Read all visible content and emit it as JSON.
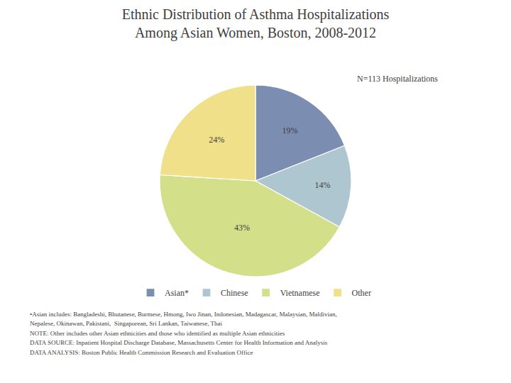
{
  "chart_data": {
    "type": "pie",
    "title": "Ethnic Distribution of Asthma Hospitalizations\nAmong Asian Women, Boston, 2008-2012",
    "subtitle": "N=113 Hospitalizations",
    "categories": [
      "Asian*",
      "Chinese",
      "Vietnamese",
      "Other"
    ],
    "values": [
      19,
      14,
      43,
      24
    ],
    "value_labels": [
      "19%",
      "14%",
      "43%",
      "24%"
    ],
    "colors": [
      "#7b8db0",
      "#aec6cf",
      "#d4df8a",
      "#f0e08a"
    ],
    "data_labels": true,
    "legend": "bottom",
    "annotations": [
      "•Asian includes: Bangladeshi, Bhutanese, Burmese, Hmong, Iwo Jinan, Indonesian, Madagascar, Malaysian, Maldivian,",
      "Nepalese, Okinawan, Pakistani,  Singaporean, Sri Lankan, Taiwanese, Thai",
      "NOTE: Other includes other Asian ethnicities and those who identified as multiple Asian ethnicities",
      "DATA SOURCE: Inpatient Hospital Discharge Database, Massachusetts Center for Health Information and Analysis",
      "DATA ANALYSIS: Boston Public Health Commission Research and Evaluation Office"
    ]
  }
}
